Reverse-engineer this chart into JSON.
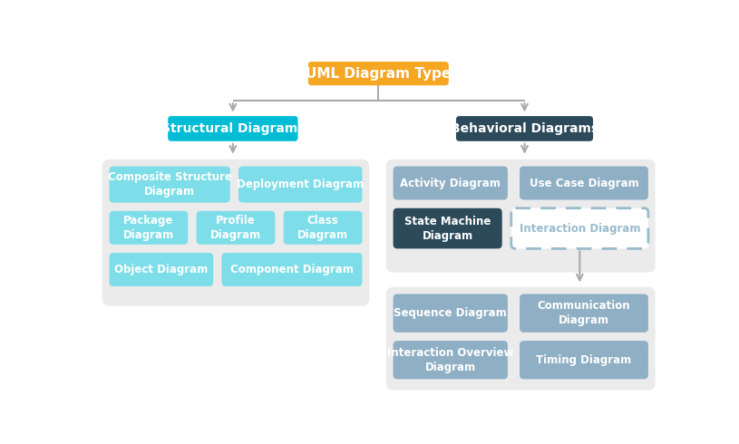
{
  "title": "UML Diagram Type",
  "title_bg": "#F5A623",
  "structural_label": "Structural Diagrams",
  "structural_bg": "#00BCD4",
  "behavioral_label": "Behavioral Diagrams",
  "behavioral_bg": "#2C4A5A",
  "state_machine_label": "State Machine\nDiagram",
  "state_machine_bg": "#2C4A5A",
  "interaction_label": "Interaction Diagram",
  "light_cyan": "#7DDDE8",
  "light_blue_gray": "#8FAFC4",
  "panel_bg": "#EBEBEB",
  "arrow_color": "#AAAAAA",
  "inter_dash_color": "#99BBCC",
  "white": "#ffffff"
}
